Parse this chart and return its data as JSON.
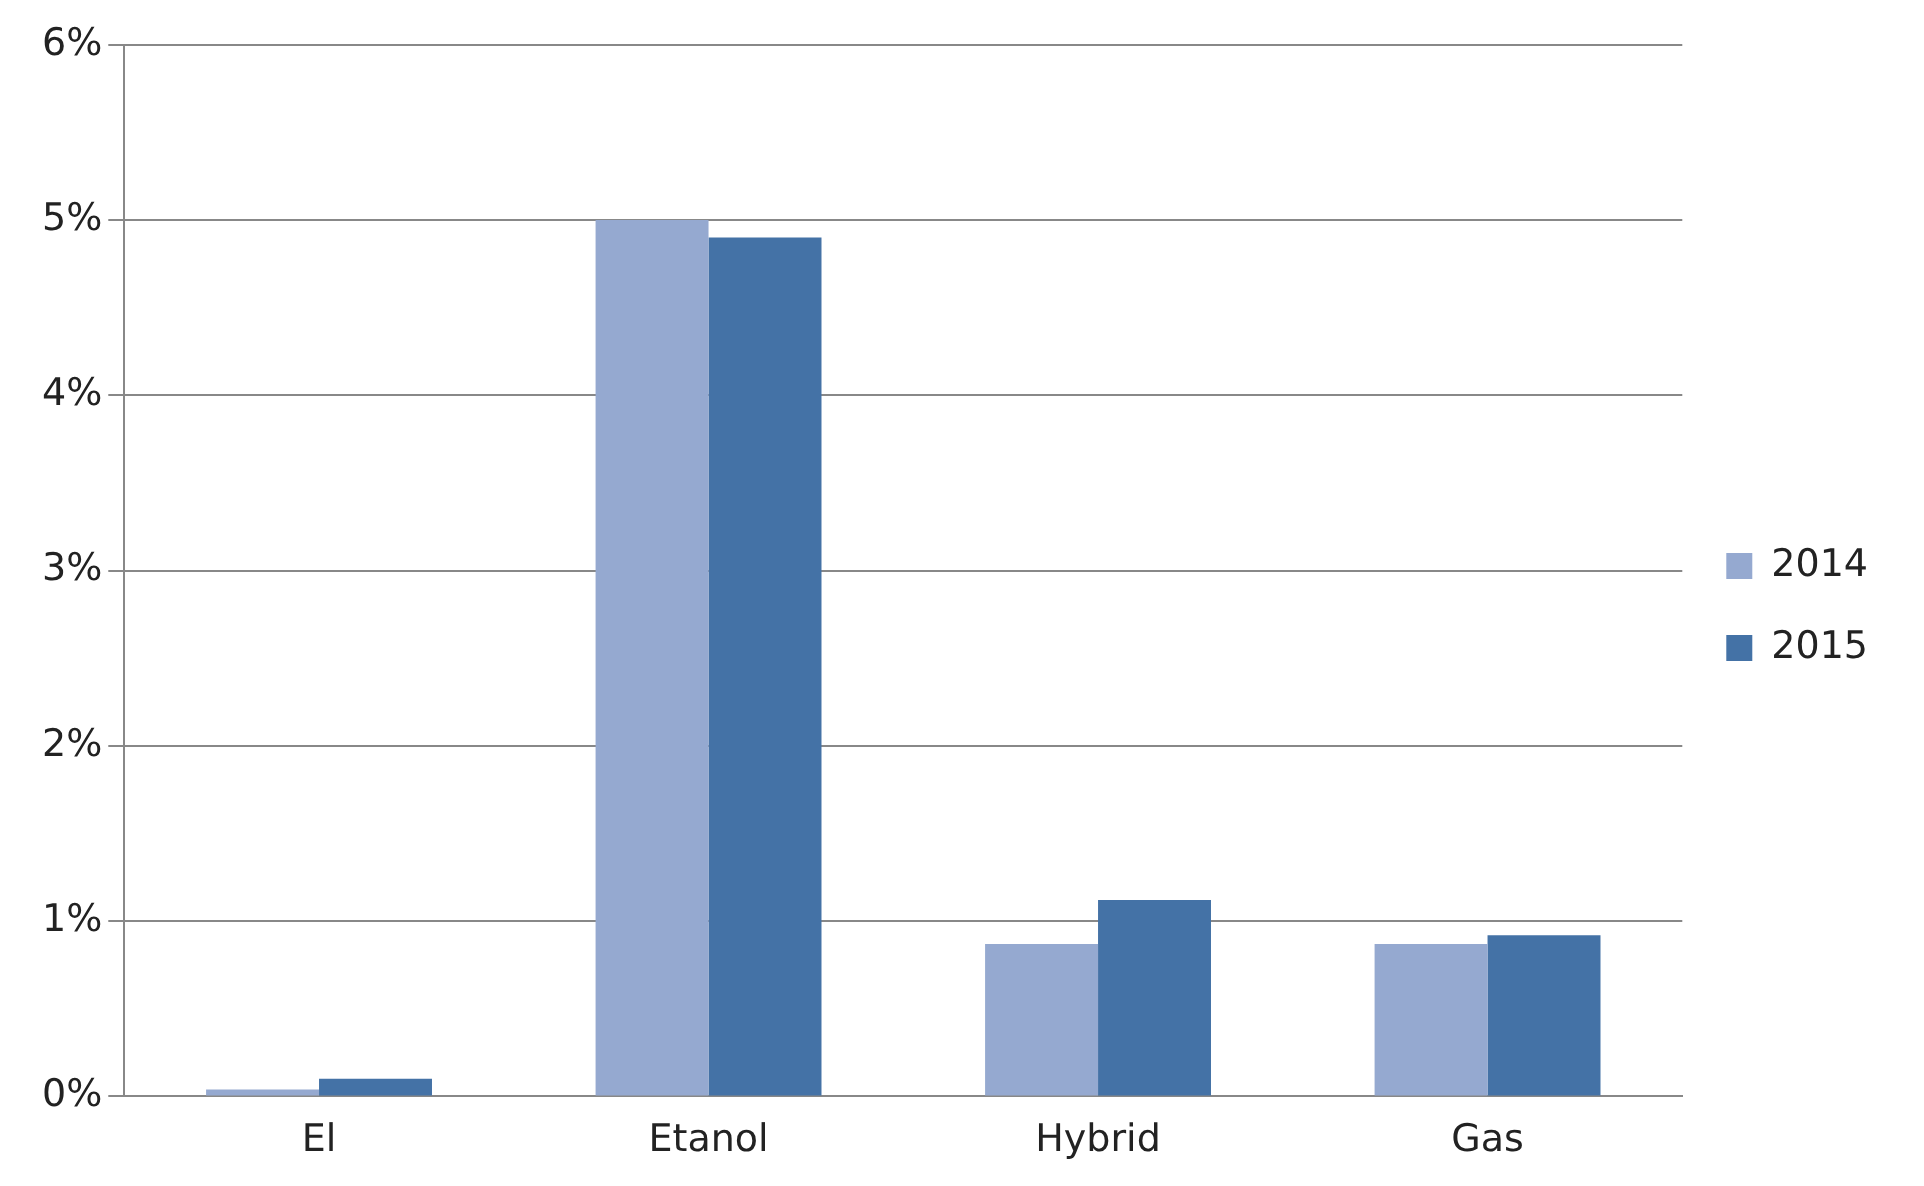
{
  "chart_data": {
    "type": "bar",
    "categories": [
      "El",
      "Etanol",
      "Hybrid",
      "Gas"
    ],
    "series": [
      {
        "name": "2014",
        "color": "#95a9d0",
        "values": [
          0.04,
          5.0,
          0.87,
          0.87
        ]
      },
      {
        "name": "2015",
        "color": "#4472a6",
        "values": [
          0.1,
          4.9,
          1.12,
          0.92
        ]
      }
    ],
    "ylim": [
      0,
      6
    ],
    "yticks": [
      {
        "value": 0,
        "label": "0%"
      },
      {
        "value": 1,
        "label": "1%"
      },
      {
        "value": 2,
        "label": "2%"
      },
      {
        "value": 3,
        "label": "3%"
      },
      {
        "value": 4,
        "label": "4%"
      },
      {
        "value": 5,
        "label": "5%"
      },
      {
        "value": 6,
        "label": "6%"
      }
    ],
    "grid": "y",
    "legend": "right"
  }
}
